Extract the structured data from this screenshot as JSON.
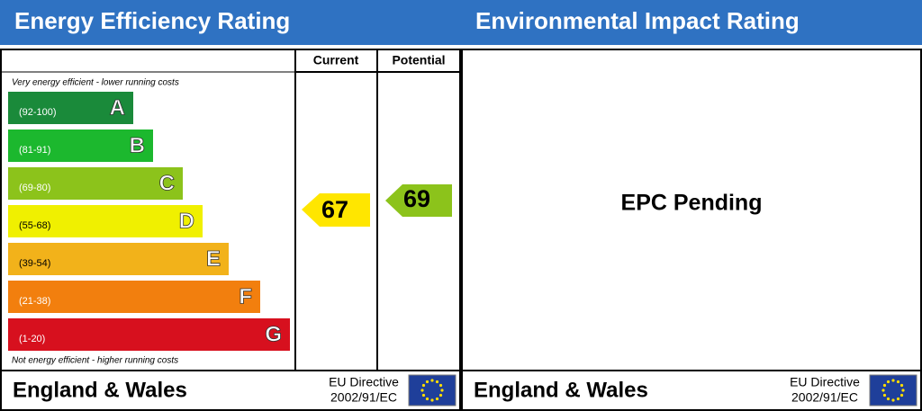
{
  "left": {
    "title": "Energy Efficiency Rating",
    "columns": [
      "Current",
      "Potential"
    ],
    "top_note": "Very energy efficient - lower running costs",
    "bottom_note": "Not energy efficient - higher running costs",
    "bands": [
      {
        "range": "(92-100)",
        "letter": "A"
      },
      {
        "range": "(81-91)",
        "letter": "B"
      },
      {
        "range": "(69-80)",
        "letter": "C"
      },
      {
        "range": "(55-68)",
        "letter": "D"
      },
      {
        "range": "(39-54)",
        "letter": "E"
      },
      {
        "range": "(21-38)",
        "letter": "F"
      },
      {
        "range": "(1-20)",
        "letter": "G"
      }
    ],
    "current": 67,
    "potential": 69,
    "footer": {
      "region": "England & Wales",
      "directive_line1": "EU Directive",
      "directive_line2": "2002/91/EC"
    }
  },
  "right": {
    "title": "Environmental Impact Rating",
    "status": "EPC Pending",
    "footer": {
      "region": "England & Wales",
      "directive_line1": "EU Directive",
      "directive_line2": "2002/91/EC"
    }
  }
}
